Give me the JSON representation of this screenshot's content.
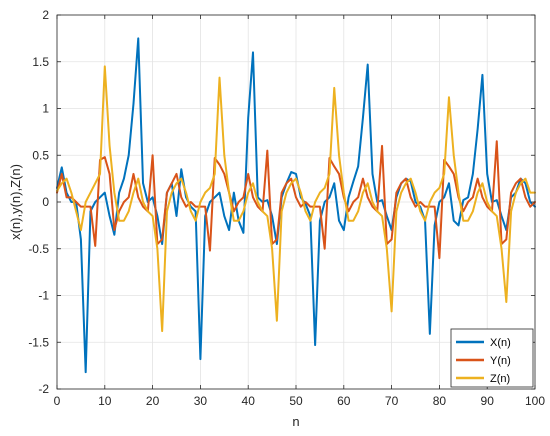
{
  "chart_data": {
    "type": "line",
    "title": "",
    "xlabel": "n",
    "ylabel": "x(n),y(n),Z(n)",
    "xlim": [
      0,
      100
    ],
    "ylim": [
      -2,
      2
    ],
    "xticks": [
      0,
      10,
      20,
      30,
      40,
      50,
      60,
      70,
      80,
      90,
      100
    ],
    "yticks": [
      -2,
      -1.5,
      -1,
      -0.5,
      0,
      0.5,
      1,
      1.5,
      2
    ],
    "grid": true,
    "legend_position": "bottom-right",
    "x": [
      0,
      1,
      2,
      3,
      4,
      5,
      6,
      7,
      8,
      9,
      10,
      11,
      12,
      13,
      14,
      15,
      16,
      17,
      18,
      19,
      20,
      21,
      22,
      23,
      24,
      25,
      26,
      27,
      28,
      29,
      30,
      31,
      32,
      33,
      34,
      35,
      36,
      37,
      38,
      39,
      40,
      41,
      42,
      43,
      44,
      45,
      46,
      47,
      48,
      49,
      50,
      51,
      52,
      53,
      54,
      55,
      56,
      57,
      58,
      59,
      60,
      61,
      62,
      63,
      64,
      65,
      66,
      67,
      68,
      69,
      70,
      71,
      72,
      73,
      74,
      75,
      76,
      77,
      78,
      79,
      80,
      81,
      82,
      83,
      84,
      85,
      86,
      87,
      88,
      89,
      90,
      91,
      92,
      93,
      94,
      95,
      96,
      97,
      98,
      99,
      100
    ],
    "series": [
      {
        "name": "X(n)",
        "color": "#0072BD",
        "values": [
          0.15,
          0.37,
          0.1,
          0,
          0,
          -0.4,
          -1.82,
          -0.1,
          0,
          0.05,
          0.1,
          -0.15,
          -0.35,
          0.1,
          0.25,
          0.5,
          1.05,
          1.75,
          0.2,
          0,
          0.05,
          -0.15,
          -0.45,
          0.1,
          0.2,
          -0.15,
          0.35,
          0.05,
          -0.05,
          -0.1,
          -1.68,
          -0.15,
          0,
          0.05,
          0.1,
          -0.15,
          -0.3,
          0.1,
          -0.2,
          -0.33,
          0.9,
          1.6,
          0.05,
          0,
          0.02,
          -0.15,
          -0.45,
          0.05,
          0.2,
          0.32,
          0.3,
          0.05,
          -0.02,
          -0.15,
          -1.53,
          -0.2,
          0,
          0.05,
          0.2,
          -0.2,
          -0.3,
          0.05,
          0.22,
          0.38,
          0.9,
          1.47,
          0.3,
          0,
          0.02,
          -0.15,
          -0.3,
          0.05,
          0.2,
          0.25,
          0.22,
          0,
          -0.05,
          -0.2,
          -1.41,
          -0.25,
          0,
          0.05,
          0.2,
          -0.2,
          -0.25,
          0.02,
          0.05,
          0.3,
          0.78,
          1.36,
          0.3,
          0,
          0.02,
          -0.15,
          -0.3,
          0.05,
          0.1,
          0.25,
          0.2,
          0,
          -0.05
        ]
      },
      {
        "name": "Y(n)",
        "color": "#D95319",
        "values": [
          0.1,
          0.3,
          0.05,
          0.05,
          0,
          -0.05,
          -0.05,
          -0.05,
          -0.47,
          0.45,
          0.48,
          0.3,
          -0.3,
          -0.1,
          0,
          0.05,
          0.3,
          0.05,
          -0.05,
          -0.1,
          0.5,
          -0.45,
          -0.4,
          0.1,
          0.2,
          0.3,
          0.05,
          -0.05,
          0,
          -0.05,
          -0.05,
          -0.05,
          -0.52,
          0.47,
          0.4,
          0.3,
          0.1,
          -0.1,
          0,
          0.05,
          0.3,
          0.05,
          -0.05,
          -0.1,
          0.55,
          -0.45,
          -0.4,
          0.1,
          0.2,
          0.25,
          0.05,
          -0.05,
          0,
          -0.05,
          -0.05,
          -0.05,
          -0.5,
          0.47,
          0.38,
          0.3,
          0.05,
          -0.1,
          0,
          0.05,
          0.25,
          0.05,
          -0.05,
          -0.1,
          0.6,
          -0.45,
          -0.4,
          0.1,
          0.2,
          0.25,
          0.05,
          -0.05,
          0,
          -0.05,
          -0.05,
          -0.05,
          -0.6,
          0.45,
          0.38,
          0.3,
          0.05,
          -0.1,
          0,
          0.05,
          0.25,
          0.05,
          -0.05,
          -0.1,
          0.65,
          -0.45,
          -0.4,
          0.1,
          0.2,
          0.25,
          0.05,
          -0.05,
          0
        ]
      },
      {
        "name": "Z(n)",
        "color": "#EDB120",
        "values": [
          0.12,
          0.2,
          0.25,
          0.1,
          -0.1,
          -0.3,
          0,
          0.1,
          0.2,
          0.3,
          1.45,
          0.6,
          0.1,
          -0.2,
          -0.2,
          -0.1,
          0.1,
          0.25,
          0,
          -0.1,
          -0.15,
          -0.5,
          -1.38,
          -0.1,
          0.1,
          0.2,
          0.25,
          0.1,
          -0.1,
          -0.2,
          0,
          0.1,
          0.15,
          0.3,
          1.33,
          0.5,
          0.1,
          -0.2,
          -0.2,
          -0.1,
          0.1,
          0.2,
          0,
          -0.1,
          -0.15,
          -0.5,
          -1.27,
          -0.1,
          0.1,
          0.2,
          0.25,
          0.1,
          -0.1,
          -0.2,
          0,
          0.1,
          0.15,
          0.3,
          1.22,
          0.5,
          0.1,
          -0.2,
          -0.2,
          -0.1,
          0.1,
          0.2,
          0,
          -0.1,
          -0.15,
          -0.5,
          -1.17,
          -0.1,
          0.1,
          0.2,
          0.25,
          0.1,
          -0.1,
          -0.2,
          0,
          0.1,
          0.15,
          0.3,
          1.12,
          0.5,
          0.1,
          -0.2,
          -0.2,
          -0.1,
          0.1,
          0.2,
          0,
          -0.1,
          -0.15,
          -0.5,
          -1.07,
          -0.1,
          0.1,
          0.2,
          0.25,
          0.1,
          0.1
        ]
      }
    ]
  }
}
